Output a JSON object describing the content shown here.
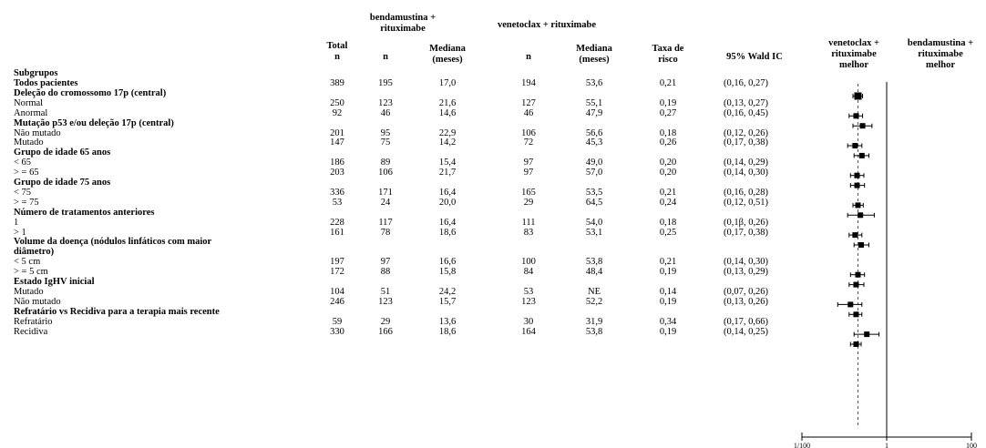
{
  "headers": {
    "subgroups": "Subgrupos",
    "total_n": "Total\nn",
    "br_group": "bendamustina +\nrituximabe",
    "vr_group": "venetoclax + rituximabe",
    "br_n": "n",
    "br_median": "Mediana\n(meses)",
    "vr_n": "n",
    "vr_median": "Mediana\n(meses)",
    "hr": "Taxa de\nrisco",
    "ci": "95% Wald IC",
    "favors_vr": "venetoclax +\nrituximabe\nmelhor",
    "favors_br": "bendamustina +\nrituximabe\nmelhor"
  },
  "rows": [
    {
      "label": "Todos pacientes",
      "bold": true,
      "total": "389",
      "br_n": "195",
      "br_med": "17,0",
      "vr_n": "194",
      "vr_med": "53,6",
      "hr": "0,21",
      "ci": "(0,16, 0,27)"
    },
    {
      "label": "Deleção do cromossomo 17p (central)",
      "bold": true
    },
    {
      "label": "Normal",
      "total": "250",
      "br_n": "123",
      "br_med": "21,6",
      "vr_n": "127",
      "vr_med": "55,1",
      "hr": "0,19",
      "ci": "(0,13, 0,27)"
    },
    {
      "label": "Anormal",
      "total": "92",
      "br_n": "46",
      "br_med": "14,6",
      "vr_n": "46",
      "vr_med": "47,9",
      "hr": "0,27",
      "ci": "(0,16, 0,45)"
    },
    {
      "label": "Mutação p53 e/ou deleção 17p (central)",
      "bold": true
    },
    {
      "label": "Não mutado",
      "total": "201",
      "br_n": "95",
      "br_med": "22,9",
      "vr_n": "106",
      "vr_med": "56,6",
      "hr": "0,18",
      "ci": "(0,12, 0,26)"
    },
    {
      "label": "Mutado",
      "total": "147",
      "br_n": "75",
      "br_med": "14,2",
      "vr_n": "72",
      "vr_med": "45,3",
      "hr": "0,26",
      "ci": "(0,17, 0,38)"
    },
    {
      "label": "Grupo de idade 65 anos",
      "bold": true
    },
    {
      "label": "< 65",
      "total": "186",
      "br_n": "89",
      "br_med": "15,4",
      "vr_n": "97",
      "vr_med": "49,0",
      "hr": "0,20",
      "ci": "(0,14, 0,29)"
    },
    {
      "label": "> = 65",
      "total": "203",
      "br_n": "106",
      "br_med": "21,7",
      "vr_n": "97",
      "vr_med": "57,0",
      "hr": "0,20",
      "ci": "(0,14, 0,30)"
    },
    {
      "label": "Grupo de idade 75 anos",
      "bold": true
    },
    {
      "label": "< 75",
      "total": "336",
      "br_n": "171",
      "br_med": "16,4",
      "vr_n": "165",
      "vr_med": "53,5",
      "hr": "0,21",
      "ci": "(0,16, 0,28)"
    },
    {
      "label": "> = 75",
      "total": "53",
      "br_n": "24",
      "br_med": "20,0",
      "vr_n": "29",
      "vr_med": "64,5",
      "hr": "0,24",
      "ci": "(0,12, 0,51)"
    },
    {
      "label": "Número de tratamentos anteriores",
      "bold": true
    },
    {
      "label": "1",
      "total": "228",
      "br_n": "117",
      "br_med": "16,4",
      "vr_n": "111",
      "vr_med": "54,0",
      "hr": "0,18",
      "ci": "(0,1β, 0,26)"
    },
    {
      "label": "> 1",
      "total": "161",
      "br_n": "78",
      "br_med": "18,6",
      "vr_n": "83",
      "vr_med": "53,1",
      "hr": "0,25",
      "ci": "(0,17, 0,38)"
    },
    {
      "label": "Volume da doença (nódulos linfáticos com maior",
      "bold": true
    },
    {
      "label": "diâmetro)",
      "bold": true
    },
    {
      "label": "< 5 cm",
      "total": "197",
      "br_n": "97",
      "br_med": "16,6",
      "vr_n": "100",
      "vr_med": "53,8",
      "hr": "0,21",
      "ci": "(0,14, 0,30)"
    },
    {
      "label": "> = 5 cm",
      "total": "172",
      "br_n": "88",
      "br_med": "15,8",
      "vr_n": "84",
      "vr_med": "48,4",
      "hr": "0,19",
      "ci": "(0,13, 0,29)"
    },
    {
      "label": "Estado IgHV inicial",
      "bold": true
    },
    {
      "label": "Mutado",
      "total": "104",
      "br_n": "51",
      "br_med": "24,2",
      "vr_n": "53",
      "vr_med": "NE",
      "hr": "0,14",
      "ci": "(0,07, 0,26)"
    },
    {
      "label": "Não mutado",
      "total": "246",
      "br_n": "123",
      "br_med": "15,7",
      "vr_n": "123",
      "vr_med": "52,2",
      "hr": "0,19",
      "ci": "(0,13, 0,26)"
    },
    {
      "label": "Refratário vs Recidiva para a terapia mais recente",
      "bold": true
    },
    {
      "label": "Refratário",
      "total": "59",
      "br_n": "29",
      "br_med": "13,6",
      "vr_n": "30",
      "vr_med": "31,9",
      "hr": "0,34",
      "ci": "(0,17, 0,66)"
    },
    {
      "label": "Recidiva",
      "total": "330",
      "br_n": "166",
      "br_med": "18,6",
      "vr_n": "164",
      "vr_med": "53,8",
      "hr": "0,19",
      "ci": "(0,14, 0,25)"
    }
  ],
  "chart_data": {
    "type": "scatter",
    "x_scale": "log",
    "xlim": [
      0.01,
      100
    ],
    "ticks": [
      {
        "value": 0.01,
        "label": "1/100"
      },
      {
        "value": 1,
        "label": "1"
      },
      {
        "value": 100,
        "label": "100"
      }
    ],
    "reference_line": 1,
    "overall_line": 0.21,
    "points": [
      {
        "subgroup": "Todos pacientes",
        "hr": 0.21,
        "lo": 0.16,
        "hi": 0.27
      },
      {
        "subgroup": "Normal",
        "hr": 0.19,
        "lo": 0.13,
        "hi": 0.27
      },
      {
        "subgroup": "Anormal",
        "hr": 0.27,
        "lo": 0.16,
        "hi": 0.45
      },
      {
        "subgroup": "Não mutado",
        "hr": 0.18,
        "lo": 0.12,
        "hi": 0.26
      },
      {
        "subgroup": "Mutado",
        "hr": 0.26,
        "lo": 0.17,
        "hi": 0.38
      },
      {
        "subgroup": "< 65",
        "hr": 0.2,
        "lo": 0.14,
        "hi": 0.29
      },
      {
        "subgroup": "> = 65",
        "hr": 0.2,
        "lo": 0.14,
        "hi": 0.3
      },
      {
        "subgroup": "< 75",
        "hr": 0.21,
        "lo": 0.16,
        "hi": 0.28
      },
      {
        "subgroup": "> = 75",
        "hr": 0.24,
        "lo": 0.12,
        "hi": 0.51
      },
      {
        "subgroup": "1",
        "hr": 0.18,
        "lo": 0.13,
        "hi": 0.26
      },
      {
        "subgroup": "> 1",
        "hr": 0.25,
        "lo": 0.17,
        "hi": 0.38
      },
      {
        "subgroup": "< 5 cm",
        "hr": 0.21,
        "lo": 0.14,
        "hi": 0.3
      },
      {
        "subgroup": "> = 5 cm",
        "hr": 0.19,
        "lo": 0.13,
        "hi": 0.29
      },
      {
        "subgroup": "Mutado (IgHV)",
        "hr": 0.14,
        "lo": 0.07,
        "hi": 0.26
      },
      {
        "subgroup": "Não mutado (IgHV)",
        "hr": 0.19,
        "lo": 0.13,
        "hi": 0.26
      },
      {
        "subgroup": "Refratário",
        "hr": 0.34,
        "lo": 0.17,
        "hi": 0.66
      },
      {
        "subgroup": "Recidiva",
        "hr": 0.19,
        "lo": 0.14,
        "hi": 0.25
      }
    ]
  }
}
